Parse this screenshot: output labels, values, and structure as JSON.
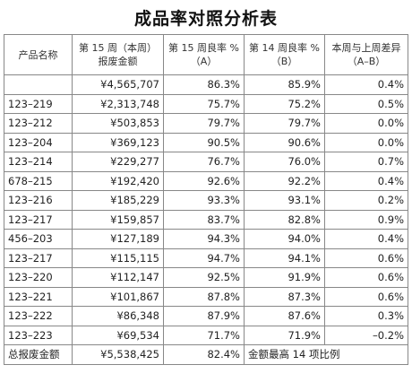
{
  "title": "成品率对照分析表",
  "headers": {
    "product": "产品名称",
    "amount_l1": "第 15 周（本周）",
    "amount_l2": "报废金额",
    "wk15_l1": "第 15 周良率 %",
    "wk15_l2": "（A）",
    "wk14_l1": "第 14 周良率 %",
    "wk14_l2": "（B）",
    "diff_l1": "本周与上周差异",
    "diff_l2": "（A–B）"
  },
  "rows": [
    {
      "name": "",
      "amount": "¥4,565,707",
      "wk15": "86.3%",
      "wk14": "85.9%",
      "diff": "0.4%"
    },
    {
      "name": "123–219",
      "amount": "¥2,313,748",
      "wk15": "75.7%",
      "wk14": "75.2%",
      "diff": "0.5%"
    },
    {
      "name": "123–212",
      "amount": "¥503,853",
      "wk15": "79.7%",
      "wk14": "79.7%",
      "diff": "0.0%"
    },
    {
      "name": "123–204",
      "amount": "¥369,123",
      "wk15": "90.5%",
      "wk14": "90.6%",
      "diff": "0.0%"
    },
    {
      "name": "123–214",
      "amount": "¥229,277",
      "wk15": "76.7%",
      "wk14": "76.0%",
      "diff": "0.7%"
    },
    {
      "name": "678–215",
      "amount": "¥192,420",
      "wk15": "92.6%",
      "wk14": "92.2%",
      "diff": "0.4%"
    },
    {
      "name": "123–216",
      "amount": "¥185,229",
      "wk15": "93.3%",
      "wk14": "93.1%",
      "diff": "0.2%"
    },
    {
      "name": "123–217",
      "amount": "¥159,857",
      "wk15": "83.7%",
      "wk14": "82.8%",
      "diff": "0.9%"
    },
    {
      "name": "456–203",
      "amount": "¥127,189",
      "wk15": "94.3%",
      "wk14": "94.0%",
      "diff": "0.4%"
    },
    {
      "name": "123–217",
      "amount": "¥115,115",
      "wk15": "94.7%",
      "wk14": "94.1%",
      "diff": "0.6%"
    },
    {
      "name": "123–220",
      "amount": "¥112,147",
      "wk15": "92.5%",
      "wk14": "91.9%",
      "diff": "0.6%"
    },
    {
      "name": "123–221",
      "amount": "¥101,867",
      "wk15": "87.8%",
      "wk14": "87.3%",
      "diff": "0.6%"
    },
    {
      "name": "123–222",
      "amount": "¥86,348",
      "wk15": "87.9%",
      "wk14": "87.6%",
      "diff": "0.3%"
    },
    {
      "name": "123–223",
      "amount": "¥69,534",
      "wk15": "71.7%",
      "wk14": "71.9%",
      "diff": "–0.2%"
    }
  ],
  "footer": {
    "label": "总报废金额",
    "amount": "¥5,538,425",
    "wk15": "82.4%",
    "note": "金额最高 14 项比例"
  }
}
